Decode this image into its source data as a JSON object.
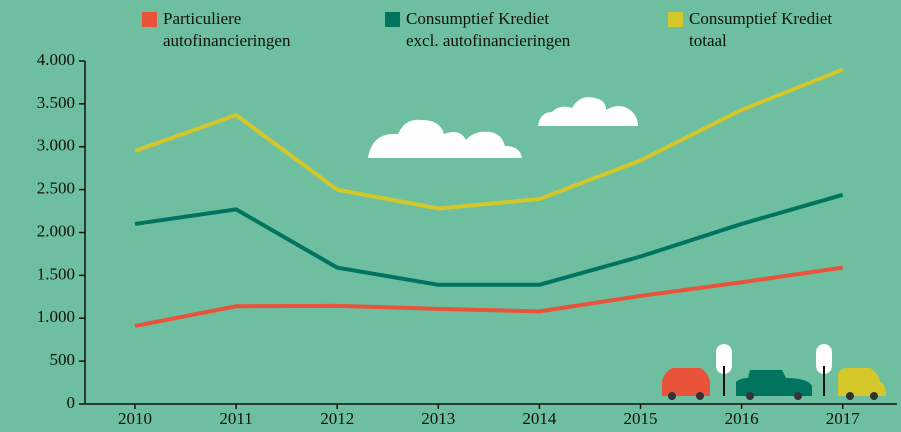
{
  "chart_data": {
    "type": "line",
    "categories": [
      "2010",
      "2011",
      "2012",
      "2013",
      "2014",
      "2015",
      "2016",
      "2017"
    ],
    "series": [
      {
        "name": "Particuliere\nautofinancieringen",
        "color": "#e8533a",
        "values": [
          910,
          1140,
          1145,
          1110,
          1080,
          1260,
          1420,
          1590
        ]
      },
      {
        "name": "Consumptief Krediet\nexcl. autofinancieringen",
        "color": "#00745f",
        "values": [
          2100,
          2270,
          1590,
          1390,
          1390,
          1720,
          2100,
          2440
        ]
      },
      {
        "name": "Consumptief Krediet\ntotaal",
        "color": "#d4c72a",
        "values": [
          2950,
          3370,
          2500,
          2280,
          2390,
          2840,
          3430,
          3900
        ]
      }
    ],
    "ylim": [
      0,
      4000
    ],
    "yticks": [
      0,
      500,
      {
        "value": 1000,
        "label": "1.000"
      },
      {
        "value": 1500,
        "label": "1.500"
      },
      {
        "value": 2000,
        "label": "2.000"
      },
      {
        "value": 2500,
        "label": "2.500"
      },
      {
        "value": 3000,
        "label": "3.000"
      },
      {
        "value": 3500,
        "label": "3.500"
      },
      {
        "value": 4000,
        "label": "4.000"
      }
    ]
  }
}
